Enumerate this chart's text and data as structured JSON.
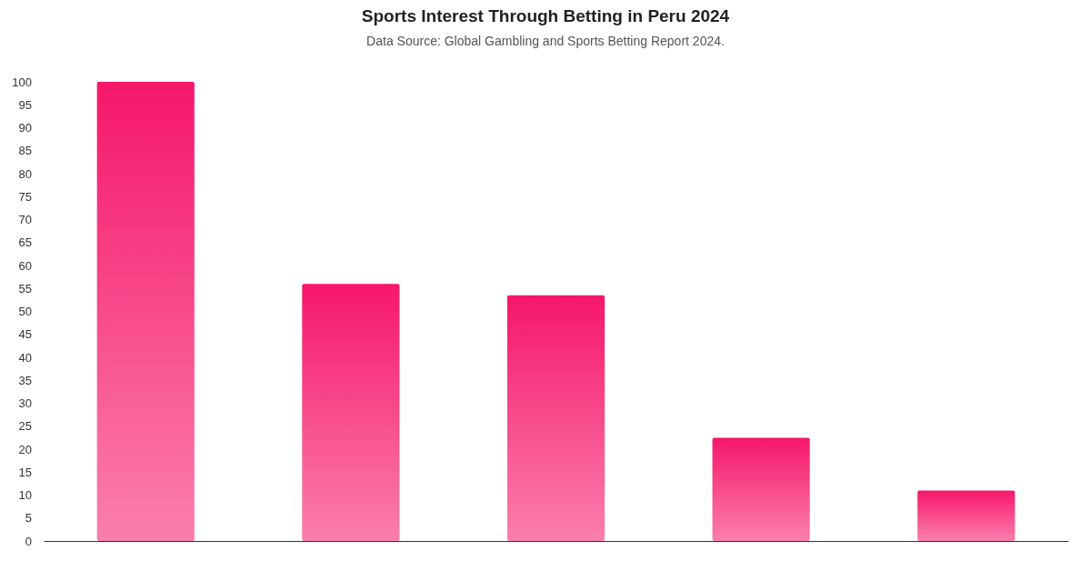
{
  "chart_data": {
    "type": "bar",
    "title": "Sports Interest Through Betting in Peru 2024",
    "subtitle": "Data Source: Global Gambling and Sports Betting Report 2024.",
    "categories": [
      null,
      null,
      null,
      null,
      null
    ],
    "values": [
      100,
      56,
      53.5,
      22.5,
      11
    ],
    "color": "#f5176a",
    "ylim": [
      0,
      100
    ],
    "yticks": [
      0,
      5,
      10,
      15,
      20,
      25,
      30,
      35,
      40,
      45,
      50,
      55,
      60,
      65,
      70,
      75,
      80,
      85,
      90,
      95,
      100
    ],
    "grid": false
  }
}
